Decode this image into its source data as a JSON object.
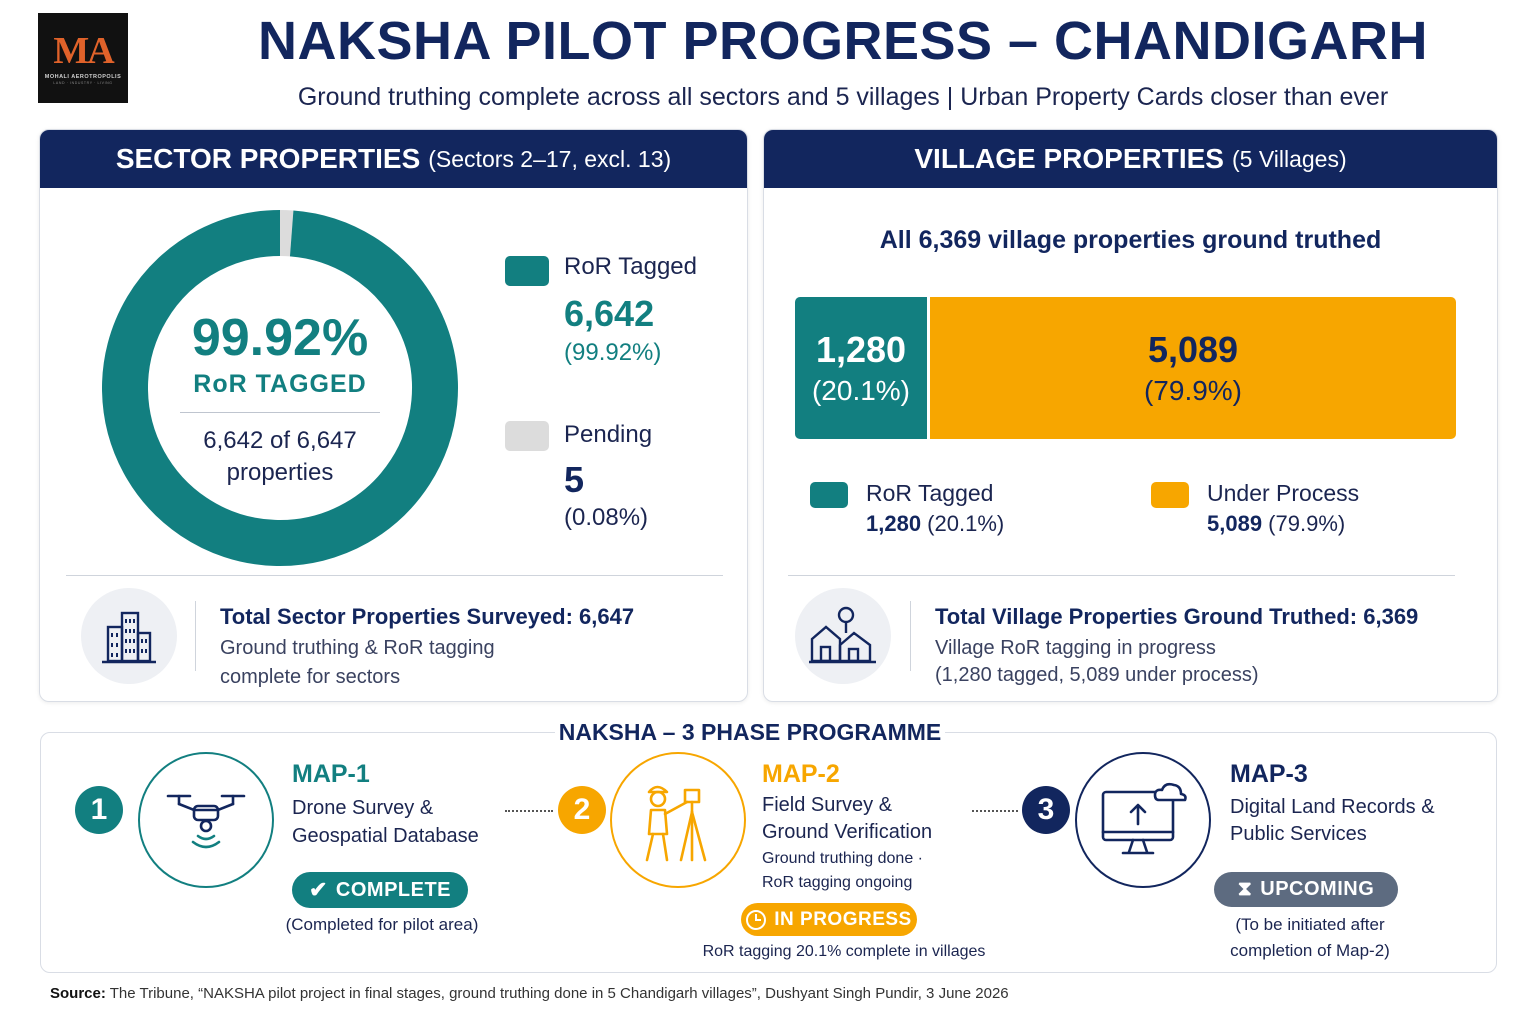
{
  "logo": {
    "mark": "MA",
    "name": "MOHALI AEROTROPOLIS",
    "tagline": "LAND · INDUSTRY · LIVING"
  },
  "title": "NAKSHA PILOT PROGRESS – CHANDIGARH",
  "subtitle": "Ground truthing complete across all sectors and 5 villages  |  Urban Property Cards closer than ever",
  "colors": {
    "navy": "#12265e",
    "teal": "#127f80",
    "amber": "#f7a600",
    "grey": "#dcdcdc",
    "slate": "#5d6b80"
  },
  "sector": {
    "heading_main": "SECTOR PROPERTIES",
    "heading_sub": "(Sectors 2–17, excl. 13)",
    "center_pct": "99.92%",
    "center_label": "RoR  TAGGED",
    "center_line1": "6,642 of 6,647",
    "center_line2": "properties",
    "legend": [
      {
        "label": "RoR Tagged",
        "value": "6,642",
        "pct": "(99.92%)"
      },
      {
        "label": "Pending",
        "value": "5",
        "pct": "(0.08%)"
      }
    ],
    "footer_title": "Total Sector Properties Surveyed: 6,647",
    "footer_line1": "Ground truthing & RoR tagging",
    "footer_line2": "complete for sectors",
    "icon": "city-buildings-icon"
  },
  "village": {
    "heading_main": "VILLAGE PROPERTIES",
    "heading_sub": "(5 Villages)",
    "headline": "All 6,369 village properties ground truthed",
    "segments": [
      {
        "value": "1,280",
        "pct": "(20.1%)"
      },
      {
        "value": "5,089",
        "pct": "(79.9%)"
      }
    ],
    "legend": [
      {
        "label": "RoR Tagged",
        "value": "1,280",
        "pct": " (20.1%)"
      },
      {
        "label": "Under Process",
        "value": "5,089",
        "pct": " (79.9%)"
      }
    ],
    "footer_title": "Total Village Properties Ground Truthed: 6,369",
    "footer_line1": "Village RoR tagging in progress",
    "footer_line2": "(1,280 tagged, 5,089 under process)",
    "icon": "village-houses-icon"
  },
  "chart_data": [
    {
      "type": "pie",
      "title": "SECTOR PROPERTIES (Sectors 2–17, excl. 13)",
      "categories": [
        "RoR Tagged",
        "Pending"
      ],
      "values": [
        6642,
        5
      ],
      "total": 6647,
      "colors": [
        "#127f80",
        "#dcdcdc"
      ]
    },
    {
      "type": "bar",
      "title": "VILLAGE PROPERTIES (5 Villages)",
      "categories": [
        "RoR Tagged",
        "Under Process"
      ],
      "values": [
        1280,
        5089
      ],
      "total": 6369,
      "colors": [
        "#127f80",
        "#f7a600"
      ]
    }
  ],
  "programme": {
    "title": "NAKSHA – 3 PHASE PROGRAMME",
    "phases": [
      {
        "num": "1",
        "name": "MAP-1",
        "desc1": "Drone Survey &",
        "desc2": "Geospatial Database",
        "badge": "COMPLETE",
        "caption1": "(Completed for pilot area)",
        "icon": "drone-icon",
        "badge_icon": "check-icon"
      },
      {
        "num": "2",
        "name": "MAP-2",
        "desc1": "Field Survey &",
        "desc2": "Ground Verification",
        "note1": "Ground truthing done ·",
        "note2": "RoR tagging ongoing",
        "badge": "IN PROGRESS",
        "caption1": "RoR tagging 20.1% complete in villages",
        "icon": "surveyor-icon",
        "badge_icon": "clock-icon"
      },
      {
        "num": "3",
        "name": "MAP-3",
        "desc1": "Digital Land Records &",
        "desc2": "Public Services",
        "badge": "UPCOMING",
        "caption1": "(To be initiated after",
        "caption2": "completion of Map-2)",
        "icon": "cloud-monitor-icon",
        "badge_icon": "hourglass-icon"
      }
    ]
  },
  "source": {
    "label": "Source:",
    "text": " The Tribune, “NAKSHA pilot project in final stages, ground truthing done in 5 Chandigarh villages”, Dushyant Singh Pundir, 3 June 2026"
  }
}
